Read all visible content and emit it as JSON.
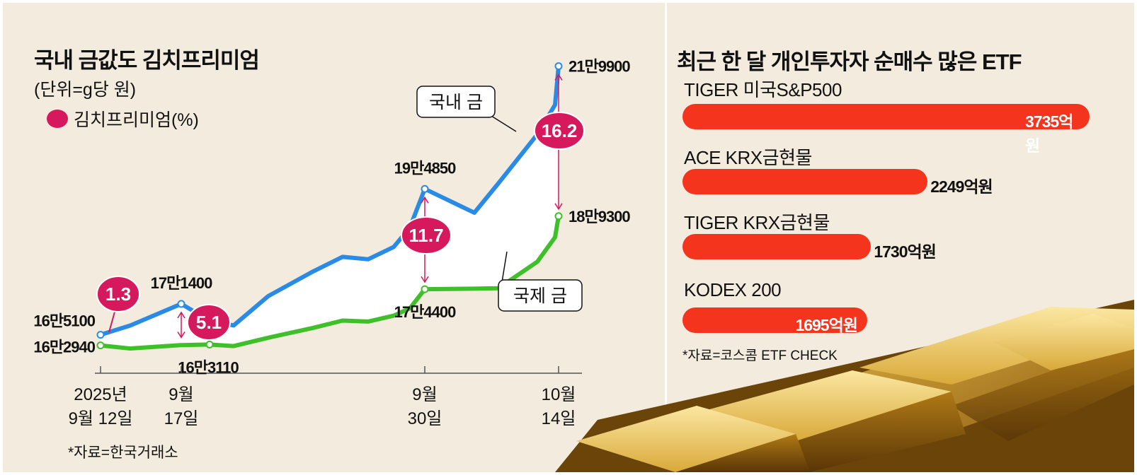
{
  "left": {
    "title": "국내 금값도 김치프리미엄",
    "unit": "(단위=g당 원)",
    "legend": "김치프리미엄(%)",
    "source": "*자료=한국거래소",
    "callouts": {
      "domestic": "국내 금",
      "international": "국제 금"
    }
  },
  "chart_data": [
    {
      "type": "line",
      "title": "국내 금값도 김치프리미엄",
      "unit": "(단위=g당 원)",
      "x_ticks": [
        {
          "line1": "2025년",
          "line2": "9월 12일"
        },
        {
          "line1": "9월",
          "line2": "17일"
        },
        {
          "line1": "9월",
          "line2": "30일"
        },
        {
          "line1": "10월",
          "line2": "14일"
        }
      ],
      "series": [
        {
          "name": "국내 금",
          "color": "#2a8be6",
          "values": [
            165100,
            167000,
            171400,
            168000,
            167000,
            173000,
            178000,
            181000,
            180500,
            183000,
            187000,
            194850,
            190000,
            196000,
            206000,
            212000,
            219900
          ]
        },
        {
          "name": "국제 금",
          "color": "#3fbf2a",
          "values": [
            162940,
            162300,
            163000,
            163110,
            162800,
            164500,
            166500,
            168000,
            167800,
            169000,
            170500,
            174400,
            174500,
            174600,
            180000,
            185000,
            189300
          ]
        }
      ],
      "value_labels": [
        {
          "series": 0,
          "index": 0,
          "text": "16만5100"
        },
        {
          "series": 1,
          "index": 0,
          "text": "16만2940"
        },
        {
          "series": 0,
          "index": 2,
          "text": "17만1400"
        },
        {
          "series": 1,
          "index": 3,
          "text": "16만3110"
        },
        {
          "series": 0,
          "index": 11,
          "text": "19만4850"
        },
        {
          "series": 1,
          "index": 11,
          "text": "17만4400"
        },
        {
          "series": 0,
          "index": 16,
          "text": "21만9900"
        },
        {
          "series": 1,
          "index": 16,
          "text": "18만9300"
        }
      ],
      "kimchi_premium_pct": [
        {
          "text": "1.3",
          "value": 1.3
        },
        {
          "text": "5.1",
          "value": 5.1
        },
        {
          "text": "11.7",
          "value": 11.7
        },
        {
          "text": "16.2",
          "value": 16.2
        }
      ]
    },
    {
      "type": "bar",
      "title": "최근 한 달 개인투자자  순매수 많은 ETF",
      "categories": [
        "TIGER 미국S&P500",
        "ACE KRX금현물",
        "TIGER KRX금현물",
        "KODEX 200"
      ],
      "values": [
        3735,
        2249,
        1730,
        1695
      ],
      "value_labels": [
        "3735억원",
        "2249억원",
        "1730억원",
        "1695억원"
      ],
      "source": "*자료=코스콤 ETF CHECK",
      "bar_color": "#f5341d"
    }
  ]
}
